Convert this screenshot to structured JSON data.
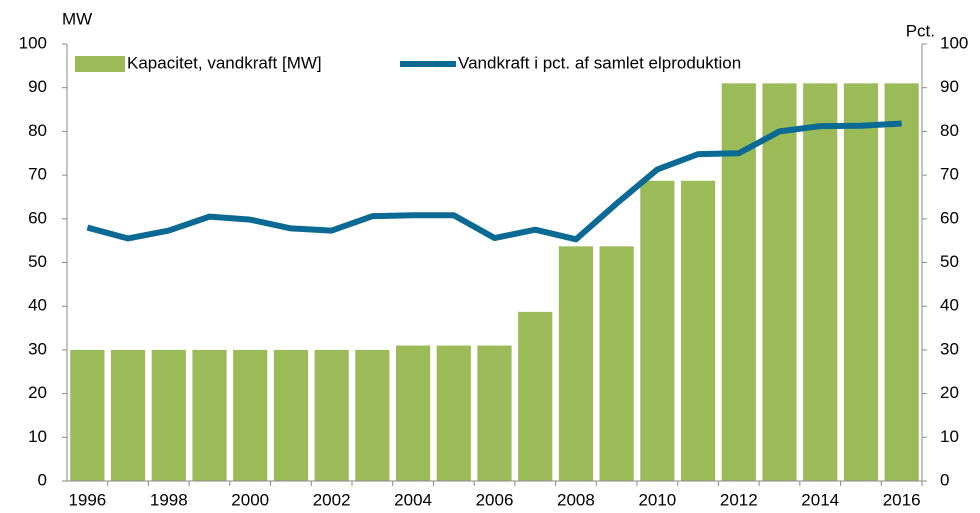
{
  "chart_data": {
    "type": "bar-line",
    "categories": [
      "1996",
      null,
      "1998",
      null,
      "2000",
      null,
      "2002",
      null,
      "2004",
      null,
      "2006",
      null,
      "2008",
      null,
      "2010",
      null,
      "2012",
      null,
      "2014",
      null,
      "2016"
    ],
    "y_label": "MW",
    "y2_label": "Pct.",
    "series": [
      {
        "name": "Kapacitet, vandkraft [MW]",
        "type": "bar",
        "color": "#9bbb59",
        "values": [
          30,
          30,
          30,
          30,
          30,
          30,
          30,
          30,
          31,
          31,
          31,
          38.7,
          53.7,
          53.7,
          68.7,
          68.7,
          91,
          91,
          91,
          91,
          91
        ]
      },
      {
        "name": "Vandkraft i pct. af samlet elproduktion",
        "type": "line",
        "axis": "y2",
        "color": "#0b6a93",
        "values": [
          58,
          55.5,
          57.3,
          60.5,
          59.8,
          57.8,
          57.3,
          60.6,
          60.8,
          60.8,
          55.6,
          57.5,
          55.3,
          63.5,
          71.3,
          74.8,
          75,
          80,
          81.2,
          81.3,
          81.8
        ]
      }
    ],
    "ylim": [
      0,
      100
    ],
    "yticks": [
      0,
      10,
      20,
      30,
      40,
      50,
      60,
      70,
      80,
      90,
      100
    ],
    "y2lim": [
      0,
      100
    ],
    "y2ticks": [
      0,
      10,
      20,
      30,
      40,
      50,
      60,
      70,
      80,
      90,
      100
    ],
    "legend": "top",
    "grid": false
  }
}
